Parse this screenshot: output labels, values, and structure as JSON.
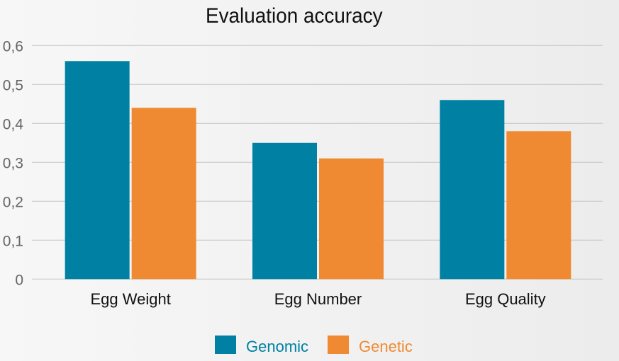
{
  "chart_data": {
    "type": "bar",
    "title": "Evaluation accuracy",
    "xlabel": "",
    "ylabel": "",
    "categories": [
      "Egg Weight",
      "Egg Number",
      "Egg Quality"
    ],
    "series": [
      {
        "name": "Genomic",
        "color": "#0080a3",
        "values": [
          0.56,
          0.35,
          0.46
        ]
      },
      {
        "name": "Genetic",
        "color": "#f08a32",
        "values": [
          0.44,
          0.31,
          0.38
        ]
      }
    ],
    "ylim": [
      0,
      0.6
    ],
    "yticks": [
      0,
      0.1,
      0.2,
      0.3,
      0.4,
      0.5,
      0.6
    ],
    "ytick_labels": [
      "0",
      "0,1",
      "0,2",
      "0,3",
      "0,4",
      "0,5",
      "0,6"
    ],
    "grid": true,
    "legend_position": "bottom-center"
  }
}
